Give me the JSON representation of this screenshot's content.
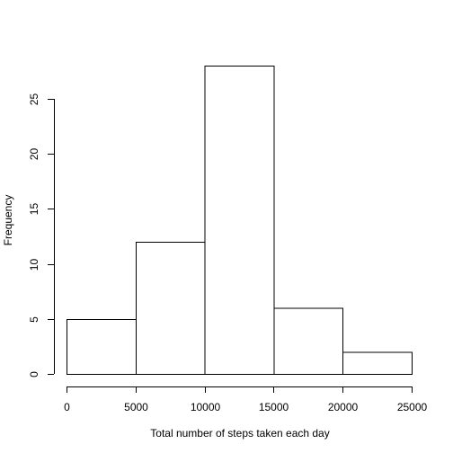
{
  "chart_data": {
    "type": "bar",
    "histogram": true,
    "title": "",
    "xlabel": "Total number of steps taken each day",
    "ylabel": "Frequency",
    "bins": [
      {
        "start": 0,
        "end": 5000,
        "count": 5
      },
      {
        "start": 5000,
        "end": 10000,
        "count": 12
      },
      {
        "start": 10000,
        "end": 15000,
        "count": 28
      },
      {
        "start": 15000,
        "end": 20000,
        "count": 6
      },
      {
        "start": 20000,
        "end": 25000,
        "count": 2
      }
    ],
    "xlim": [
      0,
      25000
    ],
    "ylim": [
      0,
      28
    ],
    "x_ticks": [
      "0",
      "5000",
      "10000",
      "15000",
      "20000",
      "25000"
    ],
    "y_ticks": [
      "0",
      "5",
      "10",
      "15",
      "20",
      "25"
    ],
    "grid": false,
    "bar_fill": "#ffffff",
    "bar_stroke": "#000000"
  }
}
